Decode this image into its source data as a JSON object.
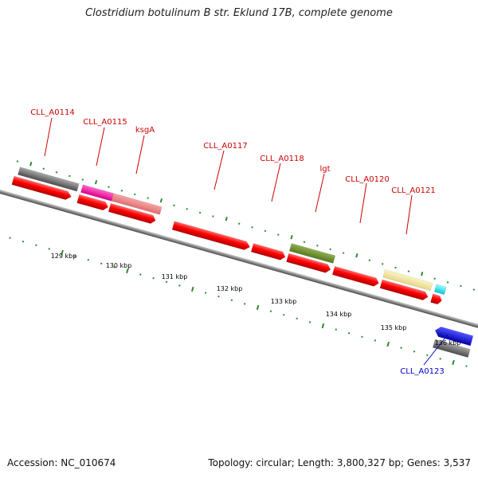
{
  "title": "Clostridium botulinum B str. Eklund 17B, complete genome",
  "footer": {
    "accession": "Accession: NC_010674",
    "summary": "Topology: circular; Length: 3,800,327 bp; Genes: 3,537"
  },
  "scale": {
    "unit": "kbp",
    "ticks": [
      "129 kbp",
      "130 kbp",
      "131 kbp",
      "132 kbp",
      "133 kbp",
      "134 kbp",
      "135 kbp",
      "136 kbp"
    ]
  },
  "colors": {
    "cds": "#ff0000",
    "label_forward": "#cc0000",
    "label_reverse": "#0000cc",
    "backbone": "#888888",
    "tick": "#2e8b2e"
  },
  "gene_labels": [
    {
      "text": "CLL_A0114",
      "strand": "forward"
    },
    {
      "text": "CLL_A0115",
      "strand": "forward"
    },
    {
      "text": "ksgA",
      "strand": "forward"
    },
    {
      "text": "CLL_A0117",
      "strand": "forward"
    },
    {
      "text": "CLL_A0118",
      "strand": "forward"
    },
    {
      "text": "lgt",
      "strand": "forward"
    },
    {
      "text": "CLL_A0120",
      "strand": "forward"
    },
    {
      "text": "CLL_A0121",
      "strand": "forward"
    },
    {
      "text": "CLL_A0123",
      "strand": "reverse"
    }
  ]
}
